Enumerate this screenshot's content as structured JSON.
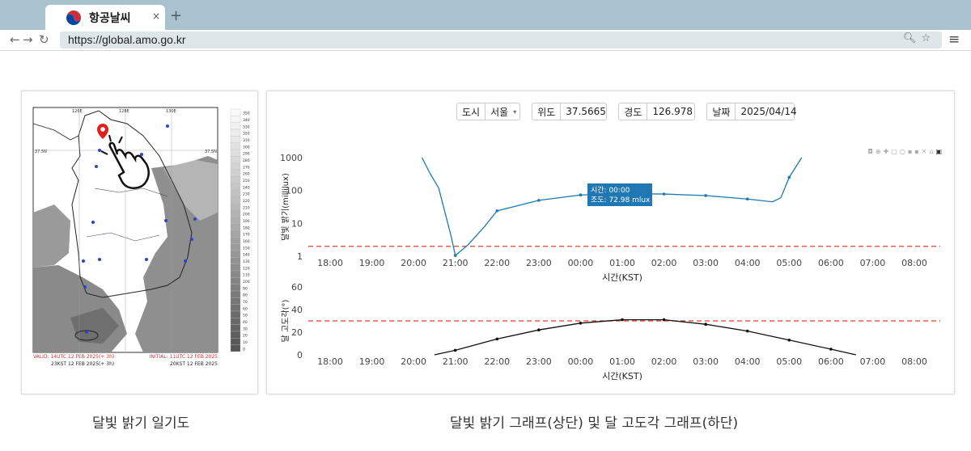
{
  "tab": {
    "title": "항공날씨",
    "close": "×",
    "new": "+"
  },
  "address": {
    "url": "https://global.amo.go.kr"
  },
  "controls": {
    "city_label": "도시",
    "city_value": "서울",
    "lat_label": "위도",
    "lat_value": "37.5665",
    "lon_label": "경도",
    "lon_value": "126.978",
    "date_label": "날짜",
    "date_value": "2025/04/14"
  },
  "map": {
    "lon_left": "126E",
    "lon_mid": "128E",
    "lon_right": "130E",
    "lat_label": "37.5N",
    "valid_text": "VALID: 14UTC 12 FEB 2025(+ 3h)",
    "valid_kst": "23KST 12 FEB 2025(+ 3h)",
    "initial_text": "INITIAL: 11UTC 12 FEB 2025",
    "initial_kst": "20KST 12 FEB 2025",
    "scale_labels": [
      "350",
      "340",
      "330",
      "320",
      "310",
      "300",
      "290",
      "280",
      "270",
      "260",
      "250",
      "240",
      "230",
      "220",
      "210",
      "200",
      "190",
      "180",
      "170",
      "160",
      "150",
      "140",
      "130",
      "120",
      "110",
      "100",
      "90",
      "80",
      "70",
      "60",
      "50",
      "40",
      "30",
      "20",
      "10",
      "0"
    ]
  },
  "captions": {
    "left": "달빛 밝기 일기도",
    "right": "달빛 밝기 그래프(상단) 및 달 고도각 그래프(하단)"
  },
  "tooltip": {
    "line1": "시간: 00:00",
    "line2": "조도: 72.98 mlux"
  },
  "chart_data": [
    {
      "type": "line",
      "title": "",
      "xlabel": "시간(KST)",
      "ylabel": "달빛 밝기(millilux)",
      "yscale": "log",
      "ylim": [
        1,
        1000
      ],
      "yticks": [
        "1",
        "10",
        "100",
        "1000"
      ],
      "categories": [
        "18:00",
        "19:00",
        "20:00",
        "21:00",
        "22:00",
        "23:00",
        "00:00",
        "01:00",
        "02:00",
        "03:00",
        "04:00",
        "05:00",
        "06:00",
        "07:00",
        "08:00"
      ],
      "threshold": 2,
      "series": [
        {
          "points": [
            [
              2.2,
              1000
            ],
            [
              2.4,
              320
            ],
            [
              2.6,
              120
            ],
            [
              2.9,
              4
            ],
            [
              3.0,
              1.05
            ],
            [
              3.3,
              2.2
            ],
            [
              3.7,
              8
            ],
            [
              4.0,
              24
            ],
            [
              5.0,
              50
            ],
            [
              6.0,
              72.98
            ],
            [
              7.0,
              80
            ],
            [
              8.0,
              78
            ],
            [
              9.0,
              70
            ],
            [
              10.0,
              55
            ],
            [
              10.6,
              45
            ],
            [
              10.8,
              60
            ],
            [
              11.0,
              250
            ],
            [
              11.3,
              1000
            ]
          ],
          "color": "#1f77b4"
        }
      ]
    },
    {
      "type": "line",
      "title": "",
      "xlabel": "시간(KST)",
      "ylabel": "달 고도각(°)",
      "ylim": [
        0,
        60
      ],
      "yticks": [
        "0",
        "20",
        "40",
        "60"
      ],
      "categories": [
        "18:00",
        "19:00",
        "20:00",
        "21:00",
        "22:00",
        "23:00",
        "00:00",
        "01:00",
        "02:00",
        "03:00",
        "04:00",
        "05:00",
        "06:00",
        "07:00",
        "08:00"
      ],
      "threshold": 30,
      "series": [
        {
          "points": [
            [
              2.5,
              0
            ],
            [
              3.0,
              4
            ],
            [
              4.0,
              14
            ],
            [
              5.0,
              22
            ],
            [
              6.0,
              28
            ],
            [
              7.0,
              31
            ],
            [
              8.0,
              31
            ],
            [
              9.0,
              27
            ],
            [
              10.0,
              21
            ],
            [
              11.0,
              13
            ],
            [
              12.0,
              5
            ],
            [
              12.6,
              0
            ]
          ],
          "color": "#111111"
        }
      ]
    }
  ]
}
